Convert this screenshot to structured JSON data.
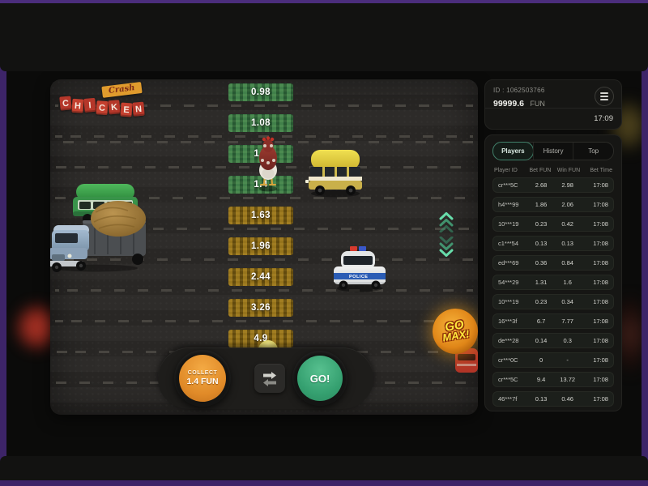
{
  "colors": {
    "frame_purple": "#3d2468",
    "accent_orange": "#e8932c",
    "accent_green": "#3fae7e",
    "patch_green": "#2e693b",
    "patch_gold": "#7a5c10"
  },
  "game": {
    "logo": {
      "tag": "Crash",
      "letters": [
        "C",
        "H",
        "I",
        "C",
        "K",
        "E",
        "N"
      ]
    },
    "lanes": [
      {
        "multiplier": "0.98",
        "state": "green"
      },
      {
        "multiplier": "1.08",
        "state": "green"
      },
      {
        "multiplier": "1.2",
        "state": "green"
      },
      {
        "multiplier": "1.4",
        "state": "green"
      },
      {
        "multiplier": "1.63",
        "state": "gold"
      },
      {
        "multiplier": "1.96",
        "state": "gold"
      },
      {
        "multiplier": "2.44",
        "state": "gold"
      },
      {
        "multiplier": "3.26",
        "state": "gold"
      },
      {
        "multiplier": "4.9",
        "state": "gold"
      }
    ],
    "police_label": "POLICE",
    "go_max": {
      "line1": "GO",
      "line2": "MAX!"
    },
    "controls": {
      "collect_label": "COLLECT",
      "collect_value": "1.4",
      "collect_currency": "FUN",
      "go_label": "GO!"
    }
  },
  "panel": {
    "id_text": "ID : 1062503766",
    "balance": "99999.6",
    "currency": "FUN",
    "time": "17:09",
    "tabs": [
      "Players",
      "History",
      "Top"
    ],
    "active_tab": "Players",
    "table": {
      "headers": [
        "Player ID",
        "Bet FUN",
        "Win FUN",
        "Bet Time"
      ],
      "rows": [
        [
          "cr***5C",
          "2.68",
          "2.98",
          "17:08"
        ],
        [
          "h4***99",
          "1.86",
          "2.06",
          "17:08"
        ],
        [
          "10***19",
          "0.23",
          "0.42",
          "17:08"
        ],
        [
          "c1***54",
          "0.13",
          "0.13",
          "17:08"
        ],
        [
          "ed***69",
          "0.36",
          "0.84",
          "17:08"
        ],
        [
          "54***29",
          "1.31",
          "1.6",
          "17:08"
        ],
        [
          "10***19",
          "0.23",
          "0.34",
          "17:08"
        ],
        [
          "16***3f",
          "6.7",
          "7.77",
          "17:08"
        ],
        [
          "de***28",
          "0.14",
          "0.3",
          "17:08"
        ],
        [
          "cr***0C",
          "0",
          "-",
          "17:08"
        ],
        [
          "cr***5C",
          "9.4",
          "13.72",
          "17:08"
        ],
        [
          "46***7f",
          "0.13",
          "0.46",
          "17:08"
        ]
      ]
    }
  }
}
